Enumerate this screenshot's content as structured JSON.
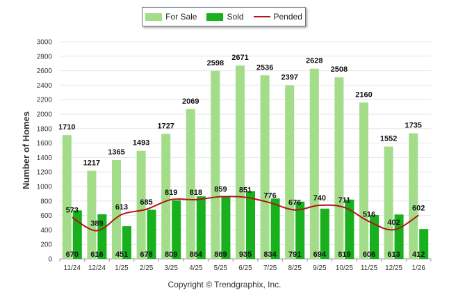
{
  "legend": {
    "for_sale": "For Sale",
    "sold": "Sold",
    "pended": "Pended"
  },
  "copyright": "Copyright © Trendgraphix, Inc.",
  "colors": {
    "for_sale": "#a3dd8a",
    "sold": "#19b01e",
    "pended": "#b21515",
    "grid": "#e6e6e6"
  },
  "chart_data": {
    "type": "bar",
    "title": "",
    "xlabel": "",
    "ylabel": "Number of Homes",
    "ylim": [
      0,
      3000
    ],
    "yticks": [
      0,
      200,
      400,
      600,
      800,
      1000,
      1200,
      1400,
      1600,
      1800,
      2000,
      2200,
      2400,
      2600,
      2800,
      3000
    ],
    "grid": true,
    "legend_position": "top-center",
    "categories": [
      "11/24",
      "12/24",
      "1/25",
      "2/25",
      "3/25",
      "4/25",
      "5/25",
      "6/25",
      "7/25",
      "8/25",
      "9/25",
      "10/25",
      "11/25",
      "12/25",
      "1/26"
    ],
    "series": [
      {
        "name": "For Sale",
        "kind": "bar",
        "values": [
          1710,
          1217,
          1365,
          1493,
          1727,
          2069,
          2598,
          2671,
          2536,
          2397,
          2628,
          2508,
          2160,
          1552,
          1735
        ]
      },
      {
        "name": "Sold",
        "kind": "bar",
        "values": [
          670,
          616,
          451,
          678,
          809,
          864,
          869,
          935,
          834,
          791,
          694,
          819,
          606,
          613,
          412
        ]
      },
      {
        "name": "Pended",
        "kind": "line",
        "values": [
          573,
          389,
          613,
          685,
          819,
          818,
          859,
          851,
          776,
          676,
          740,
          711,
          516,
          402,
          602
        ]
      }
    ]
  }
}
